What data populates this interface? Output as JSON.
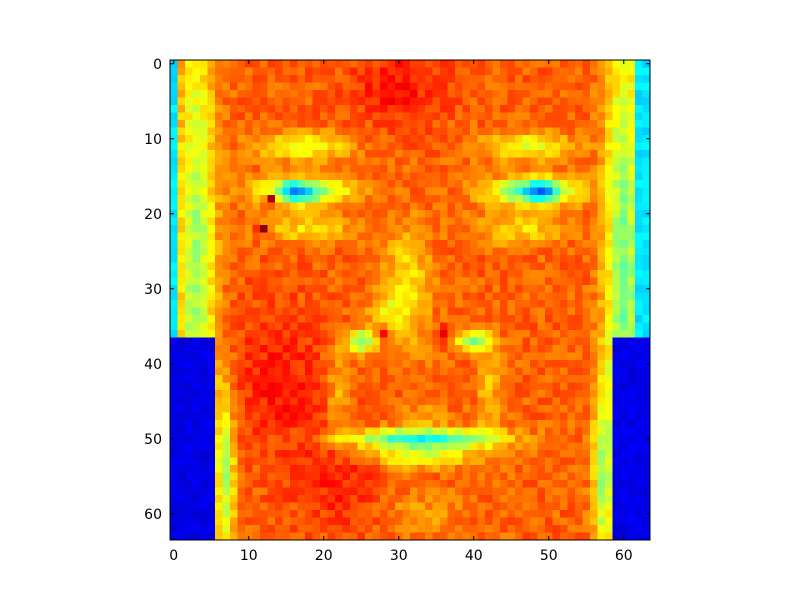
{
  "chart_data": {
    "type": "heatmap",
    "title": "",
    "xlabel": "",
    "ylabel": "",
    "colormap": "jet",
    "grid": false,
    "shape": [
      64,
      64
    ],
    "xlim": [
      -0.5,
      63.5
    ],
    "ylim": [
      63.5,
      -0.5
    ],
    "x_ticks": [
      0,
      10,
      20,
      30,
      40,
      50,
      60
    ],
    "y_ticks": [
      0,
      10,
      20,
      30,
      40,
      50,
      60
    ],
    "x_tick_labels": [
      "0",
      "10",
      "20",
      "30",
      "40",
      "50",
      "60"
    ],
    "y_tick_labels": [
      "0",
      "10",
      "20",
      "30",
      "40",
      "50",
      "60"
    ],
    "value_range": [
      0,
      1
    ],
    "base_values": {
      "skin": 0.78,
      "dark_skin": 0.87,
      "background": 0.1,
      "edge": 0.45,
      "eye_iris": 0.3,
      "eye_white": 0.5,
      "brow": 0.62,
      "mouth": 0.42,
      "nostril": 0.92,
      "nose_highlight": 0.6
    },
    "description_regions": {
      "left_eye_center": [
        16,
        18
      ],
      "right_eye_center": [
        48,
        18
      ],
      "nose_center": [
        32,
        35
      ],
      "mouth_center": [
        33,
        51
      ],
      "face_edge_x": [
        6,
        58
      ]
    }
  },
  "colors": {
    "axes_frame": "#000000",
    "background": "#ffffff"
  }
}
